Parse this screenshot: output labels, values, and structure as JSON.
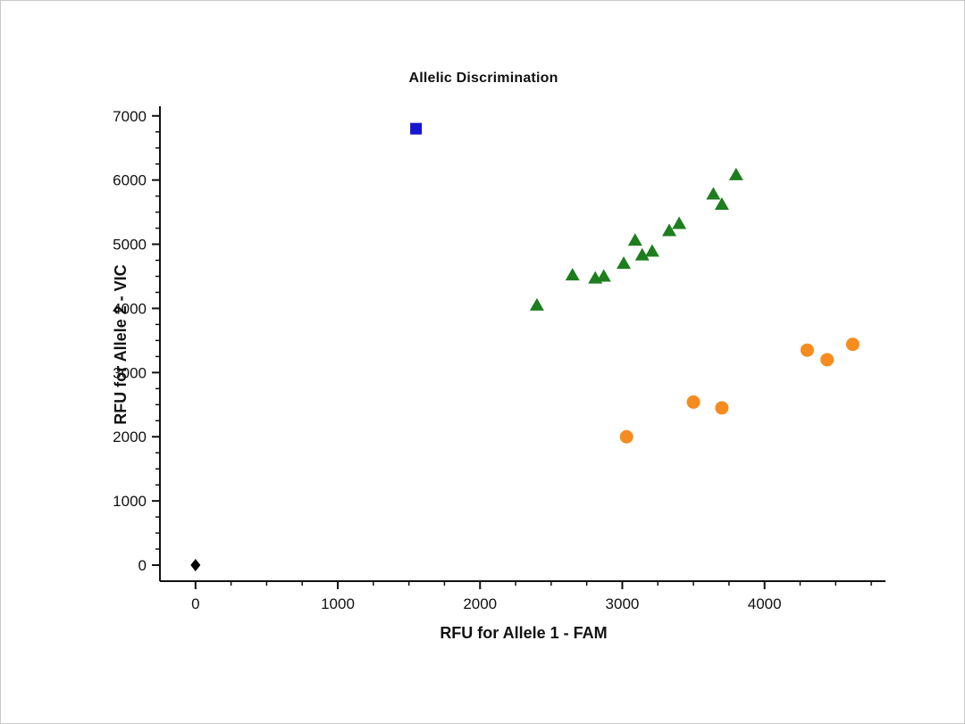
{
  "chart_data": {
    "type": "scatter",
    "title": "Allelic Discrimination",
    "xlabel": "RFU for Allele 1 - FAM",
    "ylabel": "RFU for Allele 2 - VIC",
    "xlim": [
      -250,
      4850
    ],
    "ylim": [
      -250,
      7150
    ],
    "xticks": [
      0,
      1000,
      2000,
      3000,
      4000
    ],
    "yticks": [
      0,
      1000,
      2000,
      3000,
      4000,
      5000,
      6000,
      7000
    ],
    "minor_tick_step_x": 250,
    "minor_tick_step_y": 250,
    "grid": false,
    "legend": false,
    "axis_color": "#111111",
    "series": [
      {
        "name": "blue-square",
        "marker": "square",
        "color": "#1616D1",
        "points": [
          [
            1550,
            6800
          ]
        ]
      },
      {
        "name": "green-triangle",
        "marker": "triangle",
        "color": "#1E7D1E",
        "points": [
          [
            2400,
            4050
          ],
          [
            2650,
            4520
          ],
          [
            2810,
            4470
          ],
          [
            2870,
            4500
          ],
          [
            3010,
            4700
          ],
          [
            3090,
            5060
          ],
          [
            3140,
            4830
          ],
          [
            3210,
            4890
          ],
          [
            3330,
            5210
          ],
          [
            3400,
            5320
          ],
          [
            3640,
            5780
          ],
          [
            3700,
            5620
          ],
          [
            3800,
            6080
          ]
        ]
      },
      {
        "name": "orange-circle",
        "marker": "circle",
        "color": "#F68B1F",
        "points": [
          [
            3030,
            2000
          ],
          [
            3500,
            2540
          ],
          [
            3700,
            2450
          ],
          [
            4300,
            3350
          ],
          [
            4440,
            3200
          ],
          [
            4620,
            3440
          ]
        ]
      },
      {
        "name": "black-diamond",
        "marker": "diamond",
        "color": "#000000",
        "points": [
          [
            0,
            0
          ]
        ]
      }
    ]
  }
}
